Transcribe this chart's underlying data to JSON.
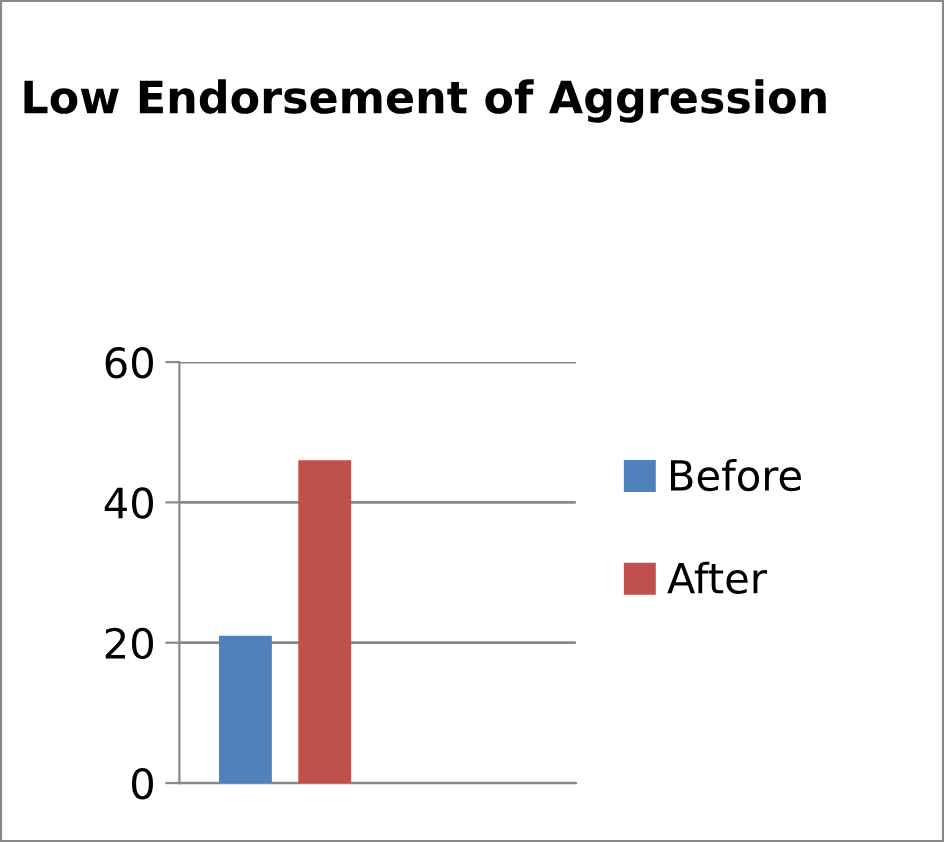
{
  "chart_data": {
    "type": "bar",
    "title": "Low Endorsement of Aggression",
    "categories": [
      null
    ],
    "series": [
      {
        "name": "Before",
        "color": "#4f81bd",
        "values": [
          21
        ]
      },
      {
        "name": "After",
        "color": "#c0504d",
        "values": [
          46
        ]
      }
    ],
    "ylim": [
      0,
      60
    ],
    "yticks": [
      0,
      20,
      40,
      60
    ],
    "grid": "y",
    "legend": "right"
  }
}
